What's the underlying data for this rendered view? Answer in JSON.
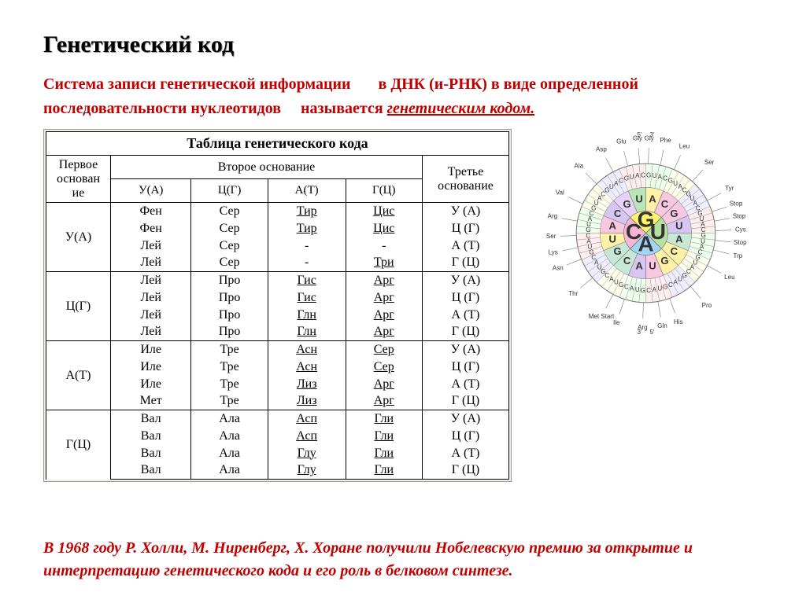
{
  "title": "Генетический код",
  "intro": {
    "part1": "Система записи генетической информации",
    "part2": "в ДНК (и-РНК) в виде определенной последовательности нуклеотидов",
    "part3": "называется ",
    "underlined": "генетическим кодом."
  },
  "table_caption": "Таблица генетического кода",
  "headers": {
    "first_base": "Первое основан ие",
    "second_base": "Второе основание",
    "third_base": "Третье основание"
  },
  "col_labels": [
    "У(А)",
    "Ц(Г)",
    "А(Т)",
    "Г(Ц)"
  ],
  "row_labels": [
    "У(А)",
    "Ц(Г)",
    "А(Т)",
    "Г(Ц)"
  ],
  "third_labels": [
    "У (А)",
    "Ц (Г)",
    "А (Т)",
    "Г (Ц)"
  ],
  "blocks": [
    [
      [
        "Фен",
        "Сер",
        "Тир",
        "Цис"
      ],
      [
        "Фен",
        "Сер",
        "Тир",
        "Цис"
      ],
      [
        "Лей",
        "Сер",
        "-",
        "-"
      ],
      [
        "Лей",
        "Сер",
        "-",
        "Три"
      ]
    ],
    [
      [
        "Лей",
        "Про",
        "Гис",
        "Арг"
      ],
      [
        "Лей",
        "Про",
        "Гис",
        "Арг"
      ],
      [
        "Лей",
        "Про",
        "Глн",
        "Арг"
      ],
      [
        "Лей",
        "Про",
        "Глн",
        "Арг"
      ]
    ],
    [
      [
        "Иле",
        "Тре",
        "Асн",
        "Сер"
      ],
      [
        "Иле",
        "Тре",
        "Асн",
        "Сер"
      ],
      [
        "Иле",
        "Тре",
        "Лиз",
        "Арг"
      ],
      [
        "Мет",
        "Тре",
        "Лиз",
        "Арг"
      ]
    ],
    [
      [
        "Вал",
        "Ала",
        "Асп",
        "Гли"
      ],
      [
        "Вал",
        "Ала",
        "Асп",
        "Гли"
      ],
      [
        "Вал",
        "Ала",
        "Глу",
        "Гли"
      ],
      [
        "Вал",
        "Ала",
        "Глу",
        "Гли"
      ]
    ]
  ],
  "underline_cols": [
    false,
    false,
    true,
    true
  ],
  "footer": "В 1968 году Р. Холли, М. Ниренберг, Х. Хоране получили Нобелевскую премию за открытие и интерпретацию генетического кода и его роль в белковом синтезе.",
  "wheel": {
    "inner_bases": [
      "G",
      "U",
      "A",
      "C"
    ],
    "inner_colors": [
      "#fff46b",
      "#b6e2a1",
      "#9fd6f7",
      "#f7b6d2"
    ],
    "ring2_bases": [
      "G",
      "U",
      "A",
      "C"
    ],
    "ring2_colors_by_quadrant": [
      [
        "#e8d1f7",
        "#b8e6b8",
        "#fff2a8",
        "#f7c8e0"
      ],
      [
        "#f7c8e0",
        "#d7c6f2",
        "#c8e8d6",
        "#fff2a8"
      ],
      [
        "#fff2a8",
        "#f7c8e0",
        "#d7c6f2",
        "#c8e8d6"
      ],
      [
        "#c8e8d6",
        "#fff2a8",
        "#f7c8e0",
        "#d7c6f2"
      ]
    ],
    "ring3_letters": [
      "G",
      "U",
      "A",
      "C"
    ],
    "amino_acids_cw_from_top": [
      "Gly",
      "Phe",
      "Leu",
      "Ser",
      "Tyr",
      "Stop",
      "Stop",
      "Cys",
      "Stop",
      "Trp",
      "Leu",
      "Pro",
      "His",
      "Gln",
      "Arg",
      "Ile",
      "Met Start",
      "Thr",
      "Asn",
      "Lys",
      "Ser",
      "Arg",
      "Val",
      "Ala",
      "Asp",
      "Glu",
      "Gly",
      "Glu",
      "Asp",
      "Ala",
      "Val",
      "Arg"
    ],
    "aa_outer": [
      {
        "label": "Gly",
        "ang": -95
      },
      {
        "label": "Glu",
        "ang": -105
      },
      {
        "label": "Asp",
        "ang": -118
      },
      {
        "label": "Ala",
        "ang": -135
      },
      {
        "label": "Val",
        "ang": -155
      },
      {
        "label": "Arg",
        "ang": -170
      },
      {
        "label": "Ser",
        "ang": 178
      },
      {
        "label": "Lys",
        "ang": 168
      },
      {
        "label": "Asn",
        "ang": 158
      },
      {
        "label": "Thr",
        "ang": 140
      },
      {
        "label": "Met Start",
        "ang": 118
      },
      {
        "label": "Ile",
        "ang": 108
      },
      {
        "label": "Arg",
        "ang": 92
      },
      {
        "label": "Gln",
        "ang": 80
      },
      {
        "label": "His",
        "ang": 70
      },
      {
        "label": "Pro",
        "ang": 50
      },
      {
        "label": "Leu",
        "ang": 28
      },
      {
        "label": "Trp",
        "ang": 14
      },
      {
        "label": "Stop",
        "ang": 6
      },
      {
        "label": "Cys",
        "ang": -2
      },
      {
        "label": "Stop",
        "ang": -10
      },
      {
        "label": "Stop",
        "ang": -18
      },
      {
        "label": "Tyr",
        "ang": -28
      },
      {
        "label": "Ser",
        "ang": -48
      },
      {
        "label": "Leu",
        "ang": -66
      },
      {
        "label": "Phe",
        "ang": -78
      },
      {
        "label": "Gly",
        "ang": -88
      }
    ],
    "radii": {
      "r1": 28,
      "r2": 58,
      "r3": 88,
      "r4": 108
    },
    "stroke": "#777",
    "five_three": [
      "5'",
      "3'",
      "5'",
      "3'"
    ]
  }
}
